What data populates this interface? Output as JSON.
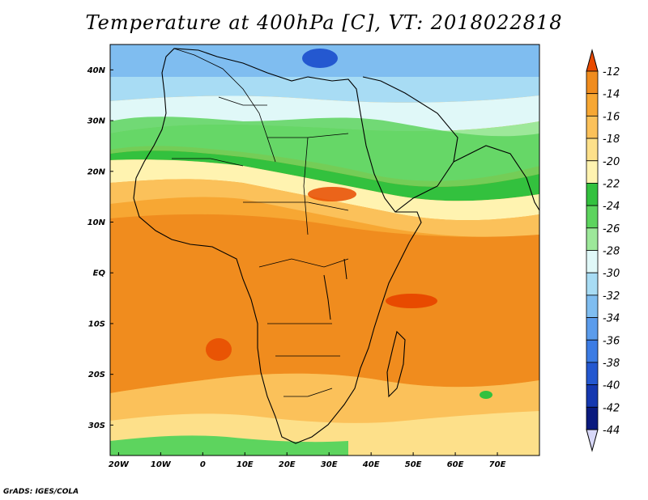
{
  "title": "Temperature at 400hPa [C], VT: 2018022818",
  "credit": "GrADS: IGES/COLA",
  "map": {
    "lat_range": [
      -36,
      45
    ],
    "lon_range": [
      -22,
      80
    ],
    "lat_labels": [
      "40N",
      "30N",
      "20N",
      "10N",
      "EQ",
      "10S",
      "20S",
      "30S"
    ],
    "lat_values": [
      40,
      30,
      20,
      10,
      0,
      -10,
      -20,
      -30
    ],
    "lon_labels": [
      "20W",
      "10W",
      "0",
      "10E",
      "20E",
      "30E",
      "40E",
      "50E",
      "60E",
      "70E"
    ],
    "lon_values": [
      -20,
      -10,
      0,
      10,
      20,
      30,
      40,
      50,
      60,
      70
    ]
  },
  "colorbar": {
    "labels": [
      "-12",
      "-14",
      "-16",
      "-18",
      "-20",
      "-22",
      "-24",
      "-26",
      "-28",
      "-30",
      "-32",
      "-34",
      "-36",
      "-38",
      "-40",
      "-42",
      "-44"
    ],
    "colors": [
      "#e84a00",
      "#f08c1e",
      "#f7a733",
      "#fbc15a",
      "#fde08a",
      "#fff3b0",
      "#33c13e",
      "#5dd45e",
      "#9de89a",
      "#e0f8f8",
      "#a8dcf4",
      "#7fbdf0",
      "#5b9cec",
      "#3c7ce4",
      "#2458d0",
      "#1538b0",
      "#0a1a7e",
      "#d8d8f8"
    ]
  }
}
